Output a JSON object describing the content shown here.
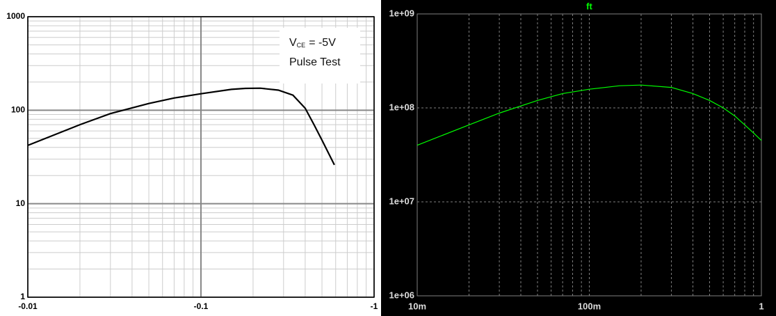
{
  "chart_data": [
    {
      "type": "line",
      "x_scale": "log",
      "y_scale": "log",
      "background": "#ffffff",
      "color": "#000000",
      "grid": "solid",
      "grid_color": "#888888",
      "minor_grid_color": "#cccccc",
      "annotation": {
        "symbol": "V",
        "subscript": "CE",
        "value": "= -5V",
        "note": "Pulse Test"
      },
      "x": [
        -0.01,
        -0.02,
        -0.03,
        -0.05,
        -0.07,
        -0.1,
        -0.15,
        -0.18,
        -0.22,
        -0.28,
        -0.34,
        -0.4,
        -0.45,
        -0.5,
        -0.59
      ],
      "values": [
        42,
        70,
        92,
        118,
        135,
        150,
        167,
        171,
        172,
        164,
        145,
        105,
        70,
        48,
        26
      ],
      "xlim": [
        -0.01,
        -1
      ],
      "xticks": [
        -0.01,
        -0.1,
        -1
      ],
      "ylim": [
        1,
        1000
      ],
      "yticks": [
        1,
        10,
        100,
        1000
      ]
    },
    {
      "type": "line",
      "title": "ft",
      "x_scale": "log",
      "y_scale": "log",
      "background": "#000000",
      "color": "#00ff00",
      "grid": "dashed",
      "grid_color": "#808080",
      "x": [
        0.01,
        0.02,
        0.03,
        0.05,
        0.07,
        0.1,
        0.15,
        0.2,
        0.3,
        0.4,
        0.5,
        0.6,
        0.7,
        0.8,
        0.9,
        1
      ],
      "values": [
        40000000,
        66000000,
        88000000,
        120000000,
        142000000,
        158000000,
        172000000,
        175000000,
        165000000,
        142000000,
        120000000,
        100000000,
        82000000,
        66000000,
        54000000,
        45000000
      ],
      "xlim": [
        0.01,
        1
      ],
      "xticks": [
        {
          "value": 0.01,
          "label": "10m"
        },
        {
          "value": 0.1,
          "label": "100m"
        },
        1
      ],
      "ylim": [
        1000000,
        1000000000
      ],
      "yticks": [
        {
          "value": 1000000,
          "label": "1e+06"
        },
        {
          "value": 10000000,
          "label": "1e+07"
        },
        {
          "value": 100000000,
          "label": "1e+08"
        },
        {
          "value": 1000000000,
          "label": "1e+09"
        }
      ]
    }
  ]
}
